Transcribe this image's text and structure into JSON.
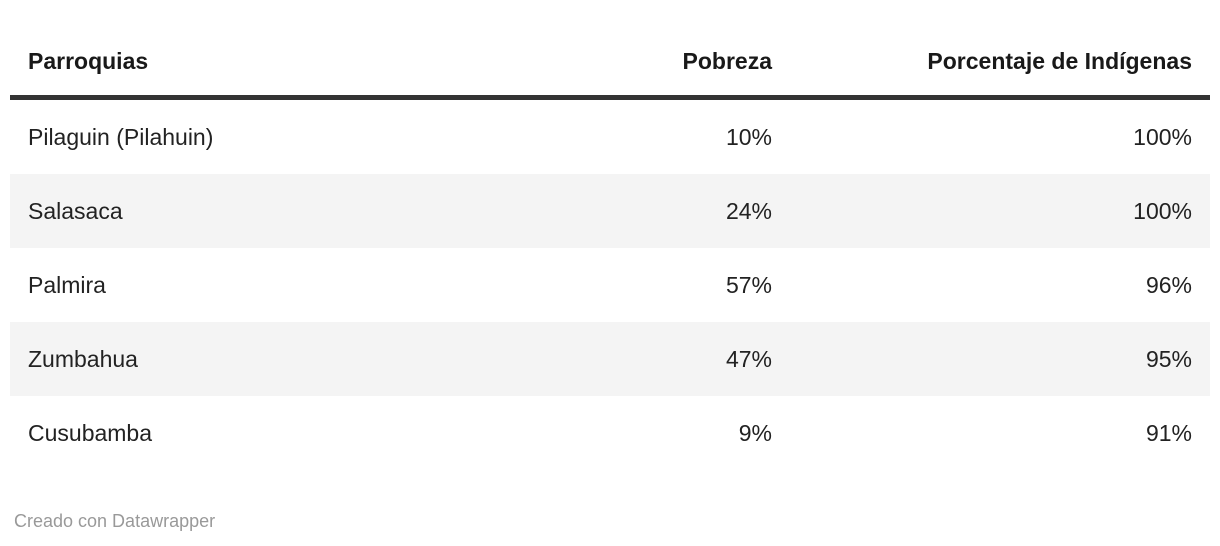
{
  "table": {
    "columns": [
      "Parroquias",
      "Pobreza",
      "Porcentaje de Indígenas"
    ],
    "rows": [
      {
        "name": "Pilaguin (Pilahuin)",
        "pobreza": "10%",
        "indigenas": "100%"
      },
      {
        "name": "Salasaca",
        "pobreza": "24%",
        "indigenas": "100%"
      },
      {
        "name": "Palmira",
        "pobreza": "57%",
        "indigenas": "96%"
      },
      {
        "name": "Zumbahua",
        "pobreza": "47%",
        "indigenas": "95%"
      },
      {
        "name": "Cusubamba",
        "pobreza": "9%",
        "indigenas": "91%"
      }
    ]
  },
  "footer": {
    "credit": "Creado con Datawrapper"
  },
  "colors": {
    "stripe_background": "#f4f4f4",
    "header_rule": "#333333",
    "header_text": "#191919",
    "body_text": "#222222",
    "footer_text": "#999999",
    "page_background": "#ffffff"
  }
}
